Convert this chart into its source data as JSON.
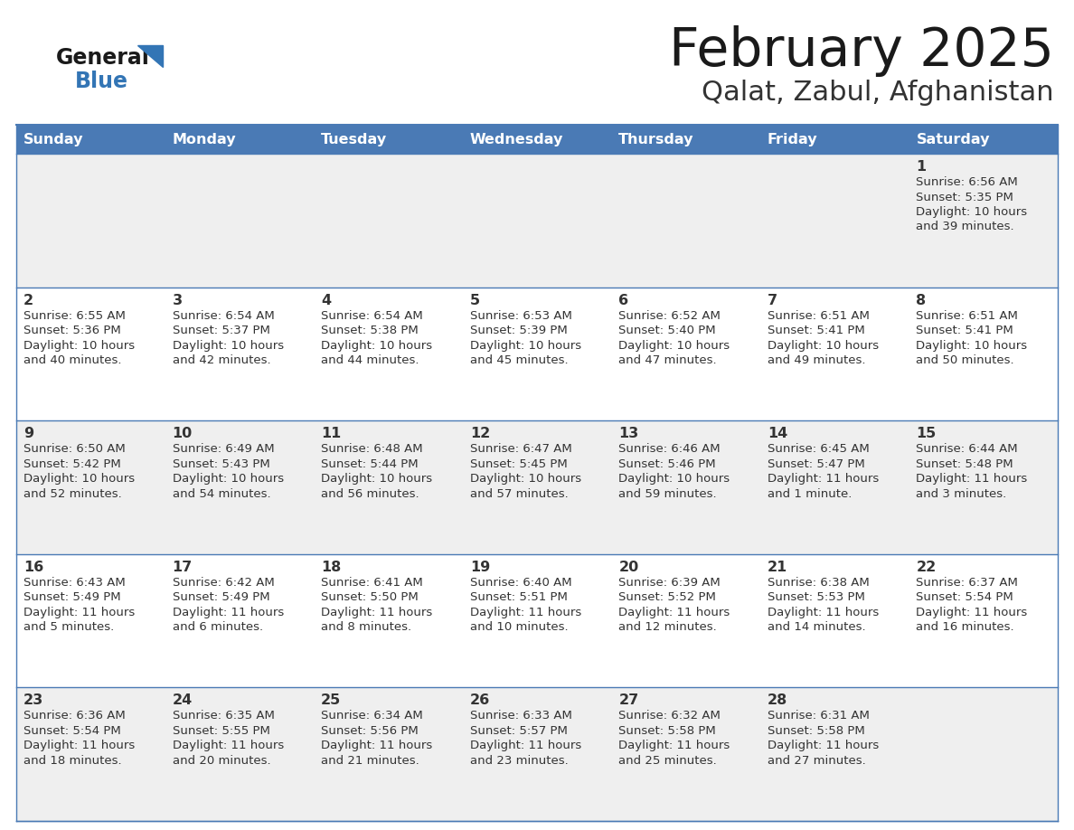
{
  "title": "February 2025",
  "subtitle": "Qalat, Zabul, Afghanistan",
  "days_of_week": [
    "Sunday",
    "Monday",
    "Tuesday",
    "Wednesday",
    "Thursday",
    "Friday",
    "Saturday"
  ],
  "header_bg": "#4a7ab5",
  "header_text": "#ffffff",
  "row_bg_odd": "#efefef",
  "row_bg_even": "#ffffff",
  "cell_border_color": "#4a7ab5",
  "day_num_color": "#333333",
  "info_color": "#333333",
  "title_color": "#1a1a1a",
  "subtitle_color": "#333333",
  "logo_general_color": "#1a1a1a",
  "logo_blue_color": "#3375b5",
  "logo_triangle_color": "#3375b5",
  "calendar_data": [
    [
      {
        "day": "",
        "sunrise": "",
        "sunset": "",
        "daylight": ""
      },
      {
        "day": "",
        "sunrise": "",
        "sunset": "",
        "daylight": ""
      },
      {
        "day": "",
        "sunrise": "",
        "sunset": "",
        "daylight": ""
      },
      {
        "day": "",
        "sunrise": "",
        "sunset": "",
        "daylight": ""
      },
      {
        "day": "",
        "sunrise": "",
        "sunset": "",
        "daylight": ""
      },
      {
        "day": "",
        "sunrise": "",
        "sunset": "",
        "daylight": ""
      },
      {
        "day": "1",
        "sunrise": "6:56 AM",
        "sunset": "5:35 PM",
        "daylight": "10 hours\nand 39 minutes."
      }
    ],
    [
      {
        "day": "2",
        "sunrise": "6:55 AM",
        "sunset": "5:36 PM",
        "daylight": "10 hours\nand 40 minutes."
      },
      {
        "day": "3",
        "sunrise": "6:54 AM",
        "sunset": "5:37 PM",
        "daylight": "10 hours\nand 42 minutes."
      },
      {
        "day": "4",
        "sunrise": "6:54 AM",
        "sunset": "5:38 PM",
        "daylight": "10 hours\nand 44 minutes."
      },
      {
        "day": "5",
        "sunrise": "6:53 AM",
        "sunset": "5:39 PM",
        "daylight": "10 hours\nand 45 minutes."
      },
      {
        "day": "6",
        "sunrise": "6:52 AM",
        "sunset": "5:40 PM",
        "daylight": "10 hours\nand 47 minutes."
      },
      {
        "day": "7",
        "sunrise": "6:51 AM",
        "sunset": "5:41 PM",
        "daylight": "10 hours\nand 49 minutes."
      },
      {
        "day": "8",
        "sunrise": "6:51 AM",
        "sunset": "5:41 PM",
        "daylight": "10 hours\nand 50 minutes."
      }
    ],
    [
      {
        "day": "9",
        "sunrise": "6:50 AM",
        "sunset": "5:42 PM",
        "daylight": "10 hours\nand 52 minutes."
      },
      {
        "day": "10",
        "sunrise": "6:49 AM",
        "sunset": "5:43 PM",
        "daylight": "10 hours\nand 54 minutes."
      },
      {
        "day": "11",
        "sunrise": "6:48 AM",
        "sunset": "5:44 PM",
        "daylight": "10 hours\nand 56 minutes."
      },
      {
        "day": "12",
        "sunrise": "6:47 AM",
        "sunset": "5:45 PM",
        "daylight": "10 hours\nand 57 minutes."
      },
      {
        "day": "13",
        "sunrise": "6:46 AM",
        "sunset": "5:46 PM",
        "daylight": "10 hours\nand 59 minutes."
      },
      {
        "day": "14",
        "sunrise": "6:45 AM",
        "sunset": "5:47 PM",
        "daylight": "11 hours\nand 1 minute."
      },
      {
        "day": "15",
        "sunrise": "6:44 AM",
        "sunset": "5:48 PM",
        "daylight": "11 hours\nand 3 minutes."
      }
    ],
    [
      {
        "day": "16",
        "sunrise": "6:43 AM",
        "sunset": "5:49 PM",
        "daylight": "11 hours\nand 5 minutes."
      },
      {
        "day": "17",
        "sunrise": "6:42 AM",
        "sunset": "5:49 PM",
        "daylight": "11 hours\nand 6 minutes."
      },
      {
        "day": "18",
        "sunrise": "6:41 AM",
        "sunset": "5:50 PM",
        "daylight": "11 hours\nand 8 minutes."
      },
      {
        "day": "19",
        "sunrise": "6:40 AM",
        "sunset": "5:51 PM",
        "daylight": "11 hours\nand 10 minutes."
      },
      {
        "day": "20",
        "sunrise": "6:39 AM",
        "sunset": "5:52 PM",
        "daylight": "11 hours\nand 12 minutes."
      },
      {
        "day": "21",
        "sunrise": "6:38 AM",
        "sunset": "5:53 PM",
        "daylight": "11 hours\nand 14 minutes."
      },
      {
        "day": "22",
        "sunrise": "6:37 AM",
        "sunset": "5:54 PM",
        "daylight": "11 hours\nand 16 minutes."
      }
    ],
    [
      {
        "day": "23",
        "sunrise": "6:36 AM",
        "sunset": "5:54 PM",
        "daylight": "11 hours\nand 18 minutes."
      },
      {
        "day": "24",
        "sunrise": "6:35 AM",
        "sunset": "5:55 PM",
        "daylight": "11 hours\nand 20 minutes."
      },
      {
        "day": "25",
        "sunrise": "6:34 AM",
        "sunset": "5:56 PM",
        "daylight": "11 hours\nand 21 minutes."
      },
      {
        "day": "26",
        "sunrise": "6:33 AM",
        "sunset": "5:57 PM",
        "daylight": "11 hours\nand 23 minutes."
      },
      {
        "day": "27",
        "sunrise": "6:32 AM",
        "sunset": "5:58 PM",
        "daylight": "11 hours\nand 25 minutes."
      },
      {
        "day": "28",
        "sunrise": "6:31 AM",
        "sunset": "5:58 PM",
        "daylight": "11 hours\nand 27 minutes."
      },
      {
        "day": "",
        "sunrise": "",
        "sunset": "",
        "daylight": ""
      }
    ]
  ]
}
